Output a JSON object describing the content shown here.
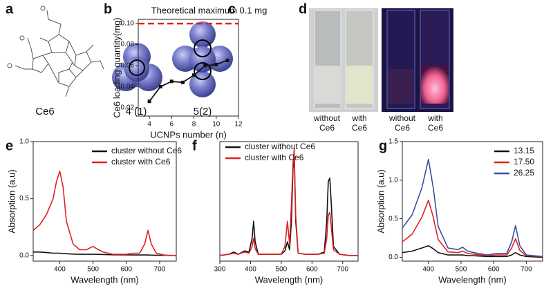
{
  "panels": {
    "labels": [
      "a",
      "b",
      "c",
      "d",
      "e",
      "f",
      "g"
    ],
    "a": {
      "caption": "Ce6"
    },
    "b": {
      "captions": [
        "4 (1)",
        "5(2)"
      ]
    },
    "d": {
      "captions": [
        [
          "without",
          "Ce6"
        ],
        [
          "with",
          "Ce6"
        ],
        [
          "without",
          "Ce6"
        ],
        [
          "with",
          "Ce6"
        ]
      ]
    }
  },
  "chart_data": [
    {
      "type": "line",
      "xlabel": "UCNPs number (n)",
      "ylabel": "Ce6 loading quantity(mg)",
      "x": [
        4,
        5,
        6,
        7,
        8,
        9,
        10,
        11
      ],
      "series": [
        {
          "color": "#111111",
          "values": [
            0.026,
            0.04,
            0.045,
            0.044,
            0.051,
            0.06,
            0.061,
            0.065
          ]
        }
      ],
      "markers": true,
      "xlim": [
        3,
        12
      ],
      "xticks": [
        4,
        6,
        8,
        10,
        12
      ],
      "ylim": [
        0.012,
        0.104
      ],
      "yticks": [
        0.02,
        0.04,
        0.06,
        0.08,
        {
          "value": 0.1,
          "label": "0.10"
        }
      ],
      "reference": {
        "value": 0.1,
        "label": "Theoretical maximum 0.1 mg",
        "color": "#e02020"
      }
    },
    {
      "type": "line",
      "xlabel": "Wavelength (nm)",
      "ylabel": "Absorption (a.u)",
      "x": [
        320,
        340,
        360,
        380,
        390,
        400,
        410,
        420,
        440,
        460,
        480,
        500,
        510,
        530,
        560,
        600,
        620,
        640,
        655,
        665,
        675,
        690,
        720,
        750
      ],
      "series": [
        {
          "name": "cluster without Ce6",
          "color": "#111111",
          "values": [
            0.03,
            0.03,
            0.025,
            0.02,
            0.02,
            0.02,
            0.018,
            0.015,
            0.012,
            0.01,
            0.01,
            0.01,
            0.01,
            0.008,
            0.006,
            0.005,
            0.004,
            0.004,
            0.004,
            0.004,
            0.003,
            0.002,
            0.001,
            0.0
          ]
        },
        {
          "name": "cluster with Ce6",
          "color": "#e02020",
          "values": [
            0.22,
            0.27,
            0.36,
            0.5,
            0.65,
            0.74,
            0.6,
            0.3,
            0.1,
            0.05,
            0.05,
            0.08,
            0.06,
            0.03,
            0.01,
            0.01,
            0.02,
            0.02,
            0.1,
            0.22,
            0.1,
            0.02,
            0.0,
            0.0
          ]
        }
      ],
      "xlim": [
        320,
        750
      ],
      "xticks": [
        400,
        500,
        600,
        700
      ],
      "ylim": [
        -0.05,
        1.0
      ],
      "yticks": [
        {
          "value": 0,
          "label": "0.0"
        },
        {
          "value": 0.5,
          "label": "0.5"
        },
        {
          "value": 1,
          "label": "1.0"
        }
      ],
      "legend": "top"
    },
    {
      "type": "line",
      "xlabel": "Wavelength (nm)",
      "x": [
        300,
        330,
        345,
        360,
        380,
        395,
        405,
        410,
        415,
        425,
        460,
        500,
        512,
        520,
        527,
        533,
        538,
        542,
        547,
        555,
        580,
        620,
        640,
        648,
        653,
        658,
        663,
        670,
        690,
        720,
        750
      ],
      "series": [
        {
          "name": "cluster without Ce6",
          "color": "#111111",
          "values": [
            0,
            0.01,
            0.03,
            0.01,
            0.04,
            0.03,
            0.15,
            0.3,
            0.12,
            0.01,
            0.01,
            0.01,
            0.04,
            0.12,
            0.05,
            0.3,
            0.75,
            0.9,
            0.3,
            0.02,
            0.01,
            0.01,
            0.03,
            0.3,
            0.65,
            0.68,
            0.45,
            0.08,
            0.01,
            0,
            0
          ]
        },
        {
          "name": "cluster with Ce6",
          "color": "#e02020",
          "values": [
            0,
            0.01,
            0.02,
            0.01,
            0.03,
            0.02,
            0.08,
            0.15,
            0.06,
            0.01,
            0.01,
            0.01,
            0.08,
            0.3,
            0.1,
            0.45,
            0.8,
            0.93,
            0.35,
            0.02,
            0.01,
            0.01,
            0.02,
            0.15,
            0.35,
            0.38,
            0.25,
            0.05,
            0.01,
            0,
            0
          ]
        }
      ],
      "xlim": [
        300,
        750
      ],
      "xticks": [
        300,
        400,
        500,
        600,
        700
      ],
      "ylim": [
        -0.05,
        1.0
      ],
      "legend": "upper left"
    },
    {
      "type": "line",
      "xlabel": "Wavelength (nm)",
      "ylabel": "Absorption (a.u)",
      "x": [
        320,
        350,
        380,
        400,
        415,
        430,
        460,
        490,
        505,
        520,
        540,
        580,
        610,
        640,
        655,
        667,
        680,
        700,
        750
      ],
      "series": [
        {
          "name": "13.15",
          "color": "#111111",
          "values": [
            0.06,
            0.08,
            0.12,
            0.15,
            0.11,
            0.06,
            0.03,
            0.03,
            0.03,
            0.02,
            0.02,
            0.01,
            0.01,
            0.01,
            0.03,
            0.06,
            0.03,
            0.01,
            0
          ]
        },
        {
          "name": "17.50",
          "color": "#e02020",
          "values": [
            0.2,
            0.3,
            0.52,
            0.74,
            0.52,
            0.23,
            0.07,
            0.06,
            0.08,
            0.05,
            0.04,
            0.02,
            0.03,
            0.03,
            0.12,
            0.24,
            0.09,
            0.02,
            0.01
          ]
        },
        {
          "name": "26.25",
          "color": "#3a4fa0",
          "values": [
            0.38,
            0.55,
            0.9,
            1.27,
            0.9,
            0.4,
            0.12,
            0.1,
            0.13,
            0.08,
            0.06,
            0.03,
            0.05,
            0.05,
            0.2,
            0.41,
            0.15,
            0.03,
            0.01
          ]
        }
      ],
      "xlim": [
        320,
        750
      ],
      "xticks": [
        400,
        500,
        600,
        700
      ],
      "ylim": [
        -0.05,
        1.5
      ],
      "yticks": [
        {
          "value": 0,
          "label": "0.0"
        },
        {
          "value": 0.5,
          "label": "0.5"
        },
        {
          "value": 1,
          "label": "1.0"
        },
        {
          "value": 1.5,
          "label": "1.5"
        }
      ],
      "legend": "upper right"
    }
  ]
}
